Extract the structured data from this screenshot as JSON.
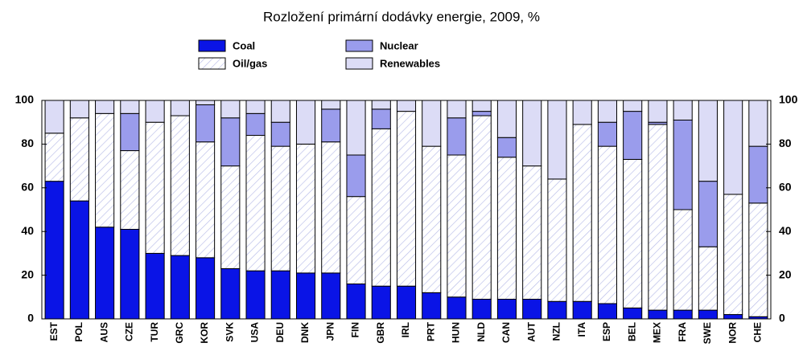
{
  "chart_data": {
    "type": "stacked-bar",
    "title": "Rozložení primární dodávky energie, 2009, %",
    "categories": [
      "EST",
      "POL",
      "AUS",
      "CZE",
      "TUR",
      "GRC",
      "KOR",
      "SVK",
      "USA",
      "DEU",
      "DNK",
      "JPN",
      "FIN",
      "GBR",
      "IRL",
      "PRT",
      "HUN",
      "NLD",
      "CAN",
      "AUT",
      "NZL",
      "ITA",
      "ESP",
      "BEL",
      "MEX",
      "FRA",
      "SWE",
      "NOR",
      "CHE"
    ],
    "series": [
      {
        "name": "Coal",
        "color": "#0a14e6",
        "values": [
          63,
          54,
          42,
          41,
          30,
          29,
          28,
          23,
          22,
          22,
          21,
          21,
          16,
          15,
          15,
          12,
          10,
          9,
          9,
          9,
          8,
          8,
          7,
          5,
          4,
          4,
          4,
          2,
          1
        ]
      },
      {
        "name": "Oil/gas",
        "color": "#b8bce8",
        "pattern": "hatch",
        "values": [
          22,
          38,
          52,
          36,
          60,
          64,
          53,
          47,
          62,
          57,
          59,
          60,
          40,
          72,
          80,
          67,
          65,
          84,
          65,
          61,
          56,
          81,
          72,
          68,
          85,
          46,
          29,
          55,
          52
        ]
      },
      {
        "name": "Nuclear",
        "color": "#9a9cec",
        "values": [
          0,
          0,
          0,
          17,
          0,
          0,
          17,
          22,
          10,
          11,
          0,
          15,
          19,
          9,
          0,
          0,
          17,
          2,
          9,
          0,
          0,
          0,
          11,
          22,
          1,
          41,
          30,
          0,
          26
        ]
      },
      {
        "name": "Renewables",
        "color": "#dcdcf6",
        "values": [
          15,
          8,
          6,
          6,
          10,
          7,
          2,
          8,
          6,
          10,
          20,
          4,
          25,
          4,
          5,
          21,
          8,
          5,
          17,
          30,
          36,
          11,
          10,
          5,
          10,
          9,
          37,
          43,
          21
        ]
      }
    ],
    "ylim": [
      0,
      100
    ],
    "yticks": [
      0,
      20,
      40,
      60,
      80,
      100
    ],
    "right_axis": true
  }
}
